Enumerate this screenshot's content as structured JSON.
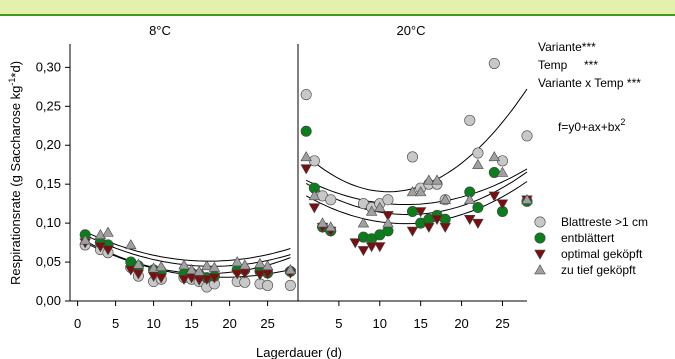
{
  "chart_data": {
    "type": "scatter",
    "ylabel": "Respirationsrate (g Saccharose kg",
    "ylabel_sup": "-1",
    "ylabel_tail": "*d)",
    "xlabel": "Lagerdauer (d)",
    "ylim": [
      0,
      0.33
    ],
    "yticks": [
      "0,00",
      "0,05",
      "0,10",
      "0,15",
      "0,20",
      "0,25",
      "0,30"
    ],
    "ytick_values": [
      0,
      0.05,
      0.1,
      0.15,
      0.2,
      0.25,
      0.3
    ],
    "annotation": {
      "line1": "Variante***",
      "line2": "Temp     ***",
      "line3": "Variante x Temp ***",
      "formula": "f=y0+ax+bx",
      "formula_sup": "2"
    },
    "colors": {
      "topbar": "#e4f0ab",
      "topbar_border": "#3c9a1c",
      "light_gray": "#c8c8c8",
      "green": "#0a7e1a",
      "dark_red": "#7a0f10",
      "gray": "#a0a0a0"
    },
    "legend": {
      "placement": "right",
      "entries": [
        {
          "label": "Blattreste >1 cm",
          "marker": "circle",
          "color": "#c8c8c8"
        },
        {
          "label": "entblättert",
          "marker": "circle",
          "color": "#0a7e1a"
        },
        {
          "label": "optimal geköpft",
          "marker": "triangle-down",
          "color": "#7a0f10"
        },
        {
          "label": "zu tief geköpft",
          "marker": "triangle-up",
          "color": "#a0a0a0"
        }
      ]
    },
    "panels": [
      {
        "title": "8°C",
        "xlim": [
          -1,
          29
        ],
        "xticks": [
          "0",
          "5",
          "10",
          "15",
          "20",
          "25"
        ],
        "xtick_values": [
          0,
          5,
          10,
          15,
          20,
          25
        ],
        "series": [
          {
            "name": "Blattreste >1 cm",
            "x": [
              1,
              3,
              4,
              7,
              8,
              10,
              11,
              14,
              15,
              16,
              17,
              18,
              21,
              22,
              24,
              25,
              28
            ],
            "y": [
              0.072,
              0.066,
              0.062,
              0.043,
              0.032,
              0.025,
              0.028,
              0.03,
              0.028,
              0.025,
              0.018,
              0.022,
              0.025,
              0.024,
              0.022,
              0.02,
              0.02
            ]
          },
          {
            "name": "entblättert",
            "x": [
              1,
              3,
              4,
              7,
              8,
              10,
              11,
              14,
              15,
              16,
              17,
              18,
              21,
              22,
              24,
              25,
              28
            ],
            "y": [
              0.085,
              0.075,
              0.072,
              0.05,
              0.045,
              0.04,
              0.038,
              0.035,
              0.036,
              0.034,
              0.03,
              0.032,
              0.04,
              0.04,
              0.038,
              0.036,
              0.038
            ]
          },
          {
            "name": "optimal geköpft",
            "x": [
              1,
              3,
              4,
              7,
              8,
              10,
              11,
              14,
              15,
              16,
              17,
              18,
              21,
              22,
              24,
              25,
              28
            ],
            "y": [
              0.075,
              0.07,
              0.066,
              0.04,
              0.035,
              0.032,
              0.03,
              0.028,
              0.03,
              0.027,
              0.028,
              0.03,
              0.035,
              0.036,
              0.034,
              0.035,
              0.036
            ]
          },
          {
            "name": "zu tief geköpft",
            "x": [
              1,
              3,
              4,
              7,
              8,
              10,
              11,
              14,
              15,
              16,
              17,
              18,
              21,
              22,
              24,
              25,
              28
            ],
            "y": [
              0.078,
              0.085,
              0.088,
              0.072,
              0.047,
              0.042,
              0.044,
              0.046,
              0.04,
              0.038,
              0.045,
              0.043,
              0.05,
              0.046,
              0.048,
              0.045,
              0.04
            ]
          }
        ],
        "fits": [
          {
            "name": "Blattreste >1 cm",
            "y0": 0.0796,
            "a": -0.00507,
            "b": 0.000131
          },
          {
            "name": "entblättert",
            "y0": 0.0897,
            "a": -0.00508,
            "b": 0.000143
          },
          {
            "name": "optimal geköpft",
            "y0": 0.0826,
            "a": -0.00561,
            "b": 0.000166
          },
          {
            "name": "zu tief geköpft",
            "y0": 0.0938,
            "a": -0.00492,
            "b": 0.000142
          }
        ]
      },
      {
        "title": "20°C",
        "xlim": [
          0,
          28
        ],
        "xticks": [
          "5",
          "10",
          "15",
          "20",
          "25"
        ],
        "xtick_values": [
          5,
          10,
          15,
          20,
          25
        ],
        "series": [
          {
            "name": "Blattreste >1 cm",
            "x": [
              1,
              2,
              3,
              4,
              8,
              9,
              10,
              11,
              14,
              15,
              16,
              17,
              18,
              21,
              22,
              24,
              25,
              28
            ],
            "y": [
              0.265,
              0.18,
              0.135,
              0.13,
              0.125,
              0.12,
              0.125,
              0.13,
              0.185,
              0.145,
              0.15,
              0.15,
              0.13,
              0.232,
              0.19,
              0.305,
              0.18,
              0.212
            ]
          },
          {
            "name": "entblättert",
            "x": [
              1,
              2,
              3,
              4,
              8,
              9,
              10,
              11,
              14,
              15,
              16,
              17,
              18,
              21,
              22,
              24,
              25,
              28
            ],
            "y": [
              0.218,
              0.145,
              0.095,
              0.09,
              0.082,
              0.08,
              0.085,
              0.09,
              0.115,
              0.1,
              0.105,
              0.11,
              0.105,
              0.14,
              0.12,
              0.165,
              0.115,
              0.128
            ]
          },
          {
            "name": "optimal geköpft",
            "x": [
              1,
              2,
              3,
              4,
              7,
              8,
              9,
              10,
              11,
              14,
              15,
              16,
              17,
              18,
              21,
              22,
              24,
              25,
              28
            ],
            "y": [
              0.17,
              0.12,
              0.095,
              0.09,
              0.075,
              0.065,
              0.07,
              0.07,
              0.11,
              0.09,
              0.115,
              0.095,
              0.105,
              0.095,
              0.105,
              0.1,
              0.135,
              0.125,
              0.13
            ]
          },
          {
            "name": "zu tief geköpft",
            "x": [
              1,
              2,
              3,
              4,
              8,
              9,
              10,
              11,
              14,
              15,
              16,
              17,
              18,
              21,
              22,
              24,
              25,
              28
            ],
            "y": [
              0.185,
              0.135,
              0.1,
              0.095,
              0.1,
              0.115,
              0.12,
              0.1,
              0.14,
              0.14,
              0.155,
              0.155,
              0.13,
              0.13,
              0.175,
              0.185,
              0.165,
              0.13
            ]
          }
        ],
        "fits": [
          {
            "name": "Blattreste >1 cm",
            "y0": 0.1966,
            "a": -0.01018,
            "b": 0.00046
          },
          {
            "name": "entblättert",
            "y0": 0.1577,
            "a": -0.00694,
            "b": 0.000258
          },
          {
            "name": "optimal geköpft",
            "y0": 0.1413,
            "a": -0.0064,
            "b": 0.000244
          },
          {
            "name": "zu tief geköpft",
            "y0": 0.1603,
            "a": -0.00552,
            "b": 0.000209
          }
        ]
      }
    ]
  }
}
